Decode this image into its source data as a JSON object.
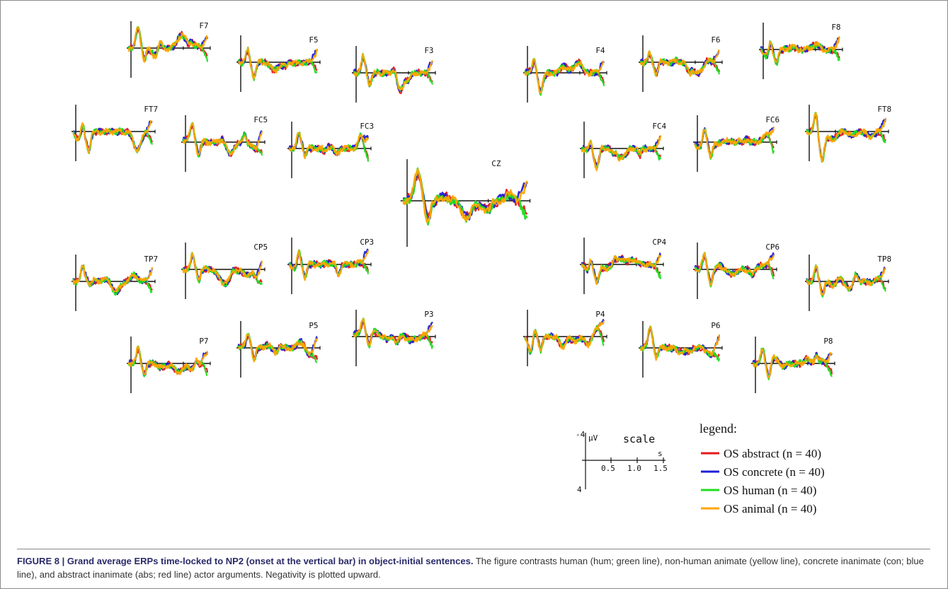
{
  "chart_data": {
    "type": "line",
    "xlabel": "s",
    "ylabel": "µV",
    "x_ticks": [
      "0.5",
      "1.0",
      "1.5"
    ],
    "y_ticks": [
      "-4",
      "4"
    ],
    "scale_title": "scale",
    "legend_title": "legend:",
    "legend_placement": "bottom-right",
    "series": [
      {
        "name": "OS abstract (n = 40)",
        "color": "#e41a1c"
      },
      {
        "name": "OS concrete (n = 40)",
        "color": "#1f1fd6"
      },
      {
        "name": "OS human (n = 40)",
        "color": "#22dd22"
      },
      {
        "name": "OS animal (n = 40)",
        "color": "#ffa500"
      }
    ],
    "channels": [
      "F7",
      "F5",
      "F3",
      "F4",
      "F6",
      "F8",
      "FT7",
      "FC5",
      "FC3",
      "CZ",
      "FC4",
      "FC6",
      "FT8",
      "TP7",
      "CP5",
      "CP3",
      "CP4",
      "CP6",
      "TP8",
      "P7",
      "P5",
      "P3",
      "P4",
      "P6",
      "P8"
    ]
  },
  "caption": {
    "label": "FIGURE 8 | Grand average ERPs time-locked to NP2 (onset at the vertical bar) in object-initial sentences.",
    "text": " The figure contrasts human (hum; green line), non-human animate (yellow line), concrete inanimate (con; blue line), and abstract inanimate (abs; red line) actor arguments. Negativity is plotted upward."
  }
}
